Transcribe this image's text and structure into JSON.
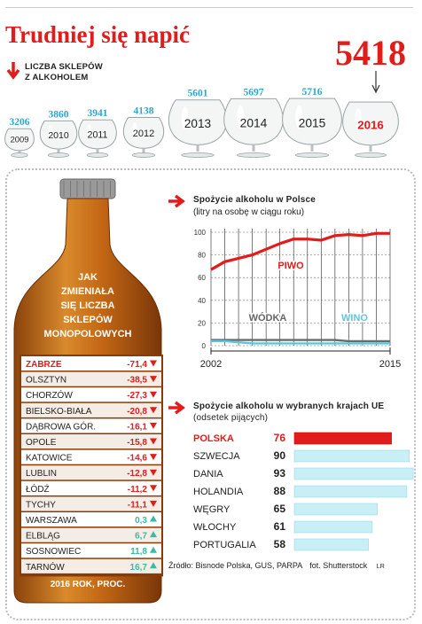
{
  "title": "Trudniej się napić",
  "highlight_value": "5418",
  "stores_header": [
    "Liczba sklepów",
    "z alkoholem"
  ],
  "stores": [
    {
      "year": "2009",
      "value": 3206
    },
    {
      "year": "2010",
      "value": 3860
    },
    {
      "year": "2011",
      "value": 3941
    },
    {
      "year": "2012",
      "value": 4138
    },
    {
      "year": "2013",
      "value": 5601
    },
    {
      "year": "2014",
      "value": 5697
    },
    {
      "year": "2015",
      "value": 5716
    },
    {
      "year": "2016",
      "value": 5418
    }
  ],
  "bottle": {
    "heading": [
      "Jak",
      "zmieniała",
      "się liczba",
      "sklepów",
      "monopolowych"
    ],
    "footer": "2016 ROK, PROC.",
    "rows": [
      {
        "city": "ZABRZE",
        "value": "-71,4",
        "dir": "down"
      },
      {
        "city": "OLSZTYN",
        "value": "-38,5",
        "dir": "down"
      },
      {
        "city": "CHORZÓW",
        "value": "-27,3",
        "dir": "down"
      },
      {
        "city": "BIELSKO-BIAŁA",
        "value": "-20,8",
        "dir": "down"
      },
      {
        "city": "DĄBROWA GÓR.",
        "value": "-16,1",
        "dir": "down"
      },
      {
        "city": "OPOLE",
        "value": "-15,8",
        "dir": "down"
      },
      {
        "city": "KATOWICE",
        "value": "-14,6",
        "dir": "down"
      },
      {
        "city": "LUBLIN",
        "value": "-12,8",
        "dir": "down"
      },
      {
        "city": "ŁÓDŹ",
        "value": "-11,2",
        "dir": "down"
      },
      {
        "city": "TYCHY",
        "value": "-11,1",
        "dir": "down"
      },
      {
        "city": "WARSZAWA",
        "value": "0,3",
        "dir": "up"
      },
      {
        "city": "ELBLĄG",
        "value": "6,7",
        "dir": "up"
      },
      {
        "city": "SOSNOWIEC",
        "value": "11,8",
        "dir": "up"
      },
      {
        "city": "TARNÓW",
        "value": "16,7",
        "dir": "up"
      }
    ]
  },
  "colors": {
    "red": "#e21b1b",
    "blue": "#5cc6e0",
    "lightblue": "#c8eef6",
    "grey": "#6b6b6b",
    "bottle": "#c86a18"
  },
  "chart_data": [
    {
      "type": "line",
      "title": "Spożycie alkoholu w Polsce",
      "subtitle": "(litry na osobę w ciągu roku)",
      "x_start_label": "2002",
      "x_end_label": "2015",
      "x": [
        2002,
        2003,
        2004,
        2005,
        2006,
        2007,
        2008,
        2009,
        2010,
        2011,
        2012,
        2013,
        2014,
        2015
      ],
      "yticks": [
        "0",
        "20",
        "40",
        "60",
        "80",
        "100"
      ],
      "ylim": [
        0,
        100
      ],
      "series": [
        {
          "name": "PIWO",
          "color": "#e21b1b",
          "values": [
            67,
            74,
            77,
            80,
            85,
            90,
            94,
            94,
            93,
            97,
            98,
            97,
            99,
            99
          ]
        },
        {
          "name": "WÓDKA",
          "color": "#6b6b6b",
          "values": [
            5,
            5,
            5,
            5,
            5,
            5,
            5,
            5,
            5,
            5,
            4,
            4,
            4,
            4
          ]
        },
        {
          "name": "WINO",
          "color": "#5cc6e0",
          "values": [
            4,
            4,
            3,
            2,
            2,
            2,
            2,
            2,
            2,
            2,
            2,
            2,
            2,
            2
          ]
        }
      ]
    },
    {
      "type": "bar",
      "title": "Spożycie alkoholu w wybranych krajach UE",
      "subtitle": "(odsetek pijących)",
      "categories": [
        "POLSKA",
        "SZWECJA",
        "DANIA",
        "HOLANDIA",
        "WĘGRY",
        "WŁOCHY",
        "PORTUGALIA"
      ],
      "values": [
        76,
        90,
        93,
        88,
        65,
        61,
        58
      ]
    }
  ],
  "source": "Źródło: Bisnode Polska, GUS, PARPA",
  "photo": "fot. Shutterstock",
  "author": "LR"
}
